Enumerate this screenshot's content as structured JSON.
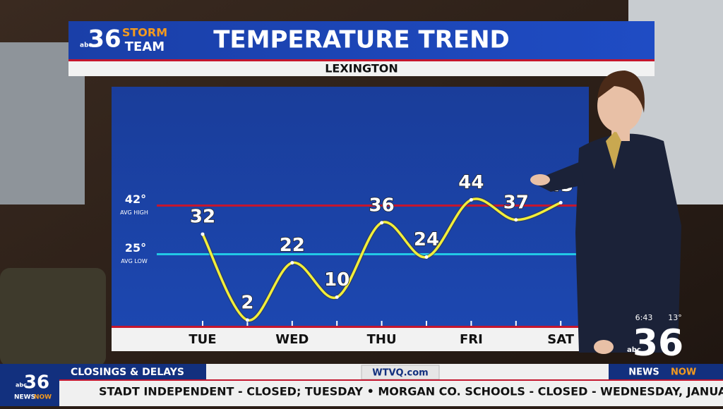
{
  "branding": {
    "network": "abc",
    "channel": "36",
    "team_top": "STORM",
    "team_bottom": "TEAM"
  },
  "chart_data": {
    "type": "line",
    "title": "TEMPERATURE TREND",
    "subtitle": "LEXINGTON",
    "categories": [
      "TUE",
      null,
      "WED",
      null,
      "THU",
      null,
      "FRI",
      null,
      "SAT"
    ],
    "values": [
      32,
      2,
      22,
      10,
      36,
      24,
      44,
      37,
      43
    ],
    "color": "#f2ee3a",
    "ylim": [
      0,
      83
    ],
    "reference_lines": [
      {
        "value": 42,
        "label": "42°",
        "note": "AVG HIGH",
        "color": "#c4162e"
      },
      {
        "value": 25,
        "label": "25°",
        "note": "AVG LOW",
        "color": "#22c8e6"
      }
    ]
  },
  "bug": {
    "time": "6:43",
    "temp": "13°",
    "network": "abc",
    "channel": "36",
    "news": "NEWS",
    "now": "NOW"
  },
  "ticker": {
    "section": "CLOSINGS & DELAYS",
    "site": "WTVQ.com",
    "text": "STADT INDEPENDENT - CLOSED; TUESDAY  •  MORGAN CO. SCHOOLS - CLOSED - WEDNESDAY, JANUAR",
    "logo_channel": "36",
    "logo_network": "abc",
    "logo_news": "NEWS",
    "logo_now": "NOW"
  }
}
